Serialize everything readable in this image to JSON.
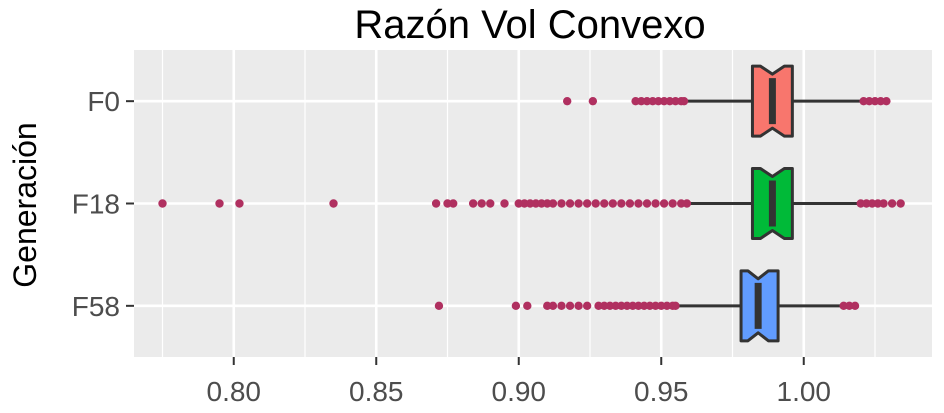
{
  "chart_data": {
    "type": "boxplot",
    "orientation": "horizontal",
    "title": "Razón Vol Convexo",
    "xlabel": "",
    "ylabel": "Generación",
    "xlim": [
      0.765,
      1.045
    ],
    "x_ticks": [
      0.8,
      0.85,
      0.9,
      0.95,
      1.0
    ],
    "x_tick_labels": [
      "0.80",
      "0.85",
      "0.90",
      "0.95",
      "1.00"
    ],
    "grid": true,
    "legend": "none",
    "categories": [
      "F0",
      "F18",
      "F58"
    ],
    "series": [
      {
        "name": "F0",
        "color": "#F8766D",
        "whisker_low": 0.959,
        "q1": 0.982,
        "median": 0.989,
        "q3": 0.996,
        "whisker_high": 1.02,
        "outliers": [
          0.917,
          0.926,
          0.941,
          0.943,
          0.945,
          0.947,
          0.949,
          0.951,
          0.953,
          0.955,
          0.957,
          0.958,
          1.021,
          1.023,
          1.025,
          1.027,
          1.029
        ]
      },
      {
        "name": "F18",
        "color": "#00BA38",
        "whisker_low": 0.96,
        "q1": 0.982,
        "median": 0.989,
        "q3": 0.996,
        "whisker_high": 1.019,
        "outliers": [
          0.775,
          0.795,
          0.802,
          0.835,
          0.871,
          0.875,
          0.877,
          0.884,
          0.887,
          0.89,
          0.895,
          0.9,
          0.902,
          0.904,
          0.906,
          0.908,
          0.91,
          0.912,
          0.915,
          0.918,
          0.921,
          0.924,
          0.927,
          0.93,
          0.933,
          0.936,
          0.939,
          0.942,
          0.945,
          0.948,
          0.951,
          0.954,
          0.957,
          0.959,
          1.02,
          1.022,
          1.024,
          1.026,
          1.028,
          1.031,
          1.034
        ]
      },
      {
        "name": "F58",
        "color": "#619CFF",
        "whisker_low": 0.956,
        "q1": 0.978,
        "median": 0.984,
        "q3": 0.991,
        "whisker_high": 1.013,
        "outliers": [
          0.872,
          0.899,
          0.903,
          0.91,
          0.912,
          0.915,
          0.918,
          0.921,
          0.924,
          0.928,
          0.93,
          0.932,
          0.934,
          0.936,
          0.938,
          0.94,
          0.942,
          0.944,
          0.946,
          0.948,
          0.95,
          0.952,
          0.954,
          0.955,
          1.014,
          1.016,
          1.018
        ]
      }
    ],
    "outlier_color": "#B03060",
    "panel_background": "#EBEBEB",
    "grid_color": "#FFFFFF",
    "box_line_color": "#333333"
  }
}
